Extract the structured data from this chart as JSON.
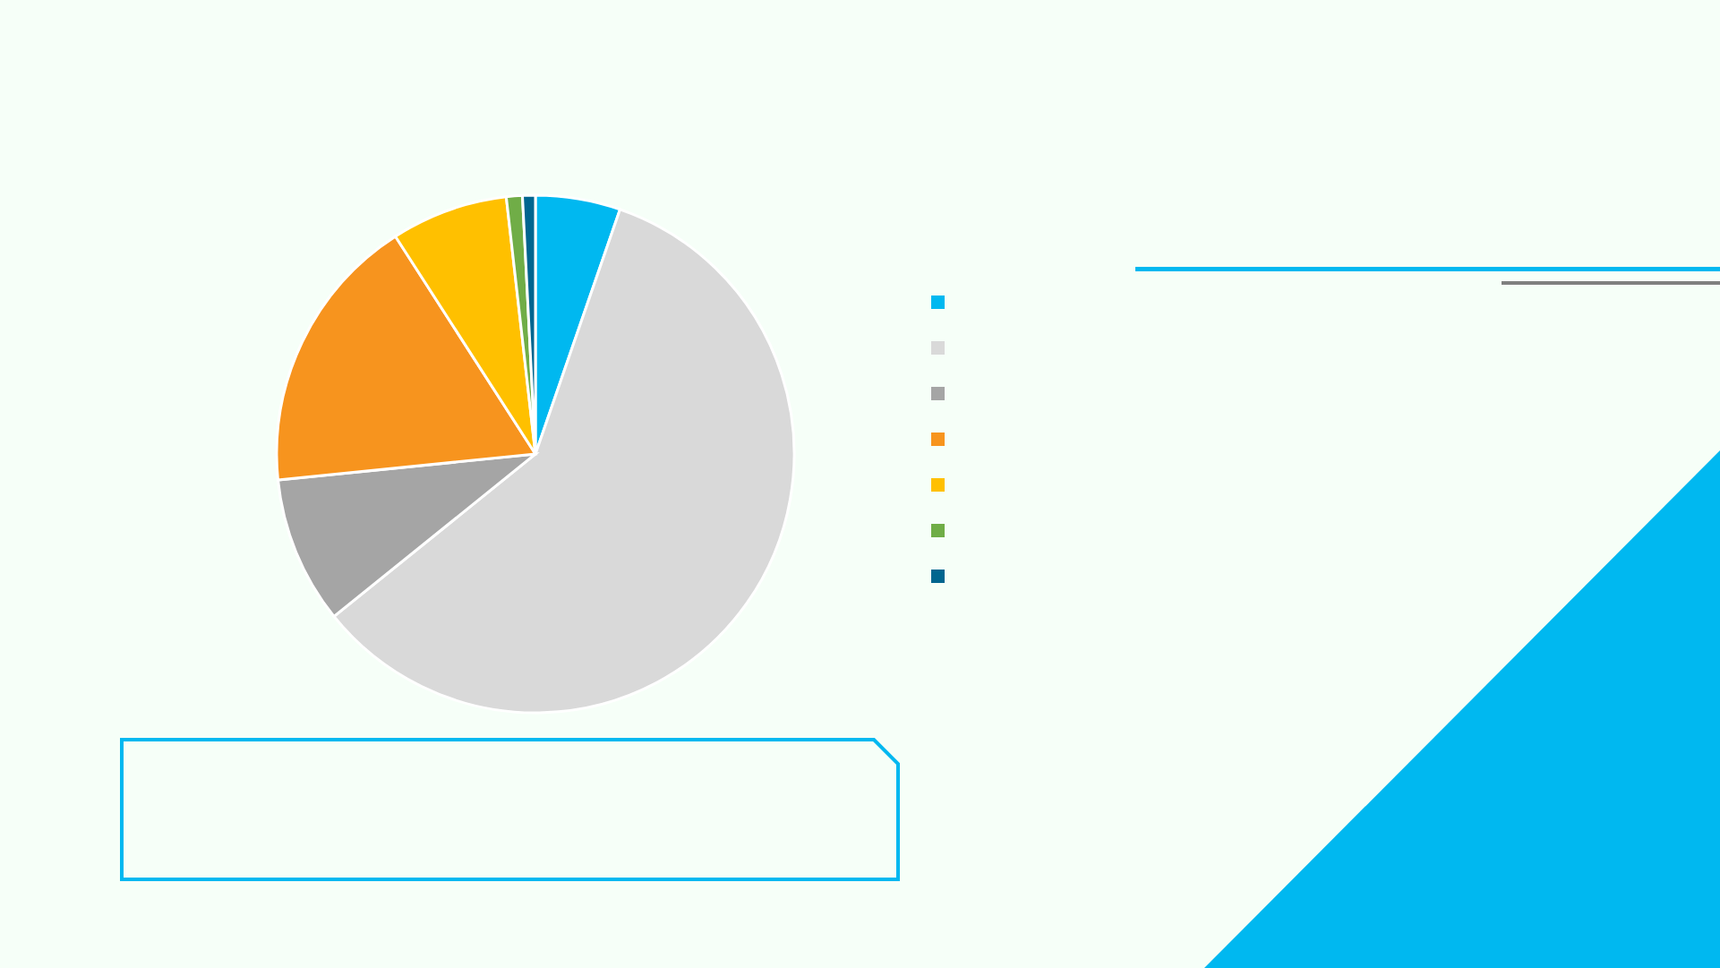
{
  "chart_data": {
    "type": "pie",
    "categories": [
      null,
      null,
      null,
      null,
      null,
      null,
      null
    ],
    "values": [
      5.3,
      58.9,
      9.2,
      17.5,
      7.3,
      1.0,
      0.8
    ],
    "colors": [
      "#00b8f0",
      "#d9d9d9",
      "#a5a5a5",
      "#f7941e",
      "#ffc000",
      "#70ad47",
      "#00658f"
    ]
  }
}
